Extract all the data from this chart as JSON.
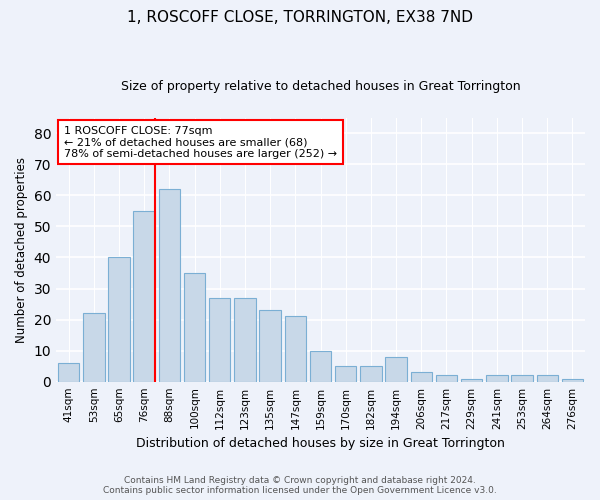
{
  "title": "1, ROSCOFF CLOSE, TORRINGTON, EX38 7ND",
  "subtitle": "Size of property relative to detached houses in Great Torrington",
  "xlabel": "Distribution of detached houses by size in Great Torrington",
  "ylabel": "Number of detached properties",
  "bar_color": "#c8d8e8",
  "bar_edge_color": "#7bafd4",
  "categories": [
    "41sqm",
    "53sqm",
    "65sqm",
    "76sqm",
    "88sqm",
    "100sqm",
    "112sqm",
    "123sqm",
    "135sqm",
    "147sqm",
    "159sqm",
    "170sqm",
    "182sqm",
    "194sqm",
    "206sqm",
    "217sqm",
    "229sqm",
    "241sqm",
    "253sqm",
    "264sqm",
    "276sqm"
  ],
  "values": [
    6,
    22,
    40,
    55,
    62,
    35,
    27,
    27,
    23,
    21,
    10,
    5,
    5,
    8,
    3,
    2,
    1,
    2,
    2,
    2,
    1
  ],
  "ylim": [
    0,
    85
  ],
  "yticks": [
    0,
    10,
    20,
    30,
    40,
    50,
    60,
    70,
    80
  ],
  "vline_x_index": 3.43,
  "annotation_text": "1 ROSCOFF CLOSE: 77sqm\n← 21% of detached houses are smaller (68)\n78% of semi-detached houses are larger (252) →",
  "annotation_box_color": "white",
  "annotation_box_edge_color": "red",
  "vline_color": "red",
  "footer_line1": "Contains HM Land Registry data © Crown copyright and database right 2024.",
  "footer_line2": "Contains public sector information licensed under the Open Government Licence v3.0.",
  "background_color": "#eef2fa",
  "grid_color": "white"
}
